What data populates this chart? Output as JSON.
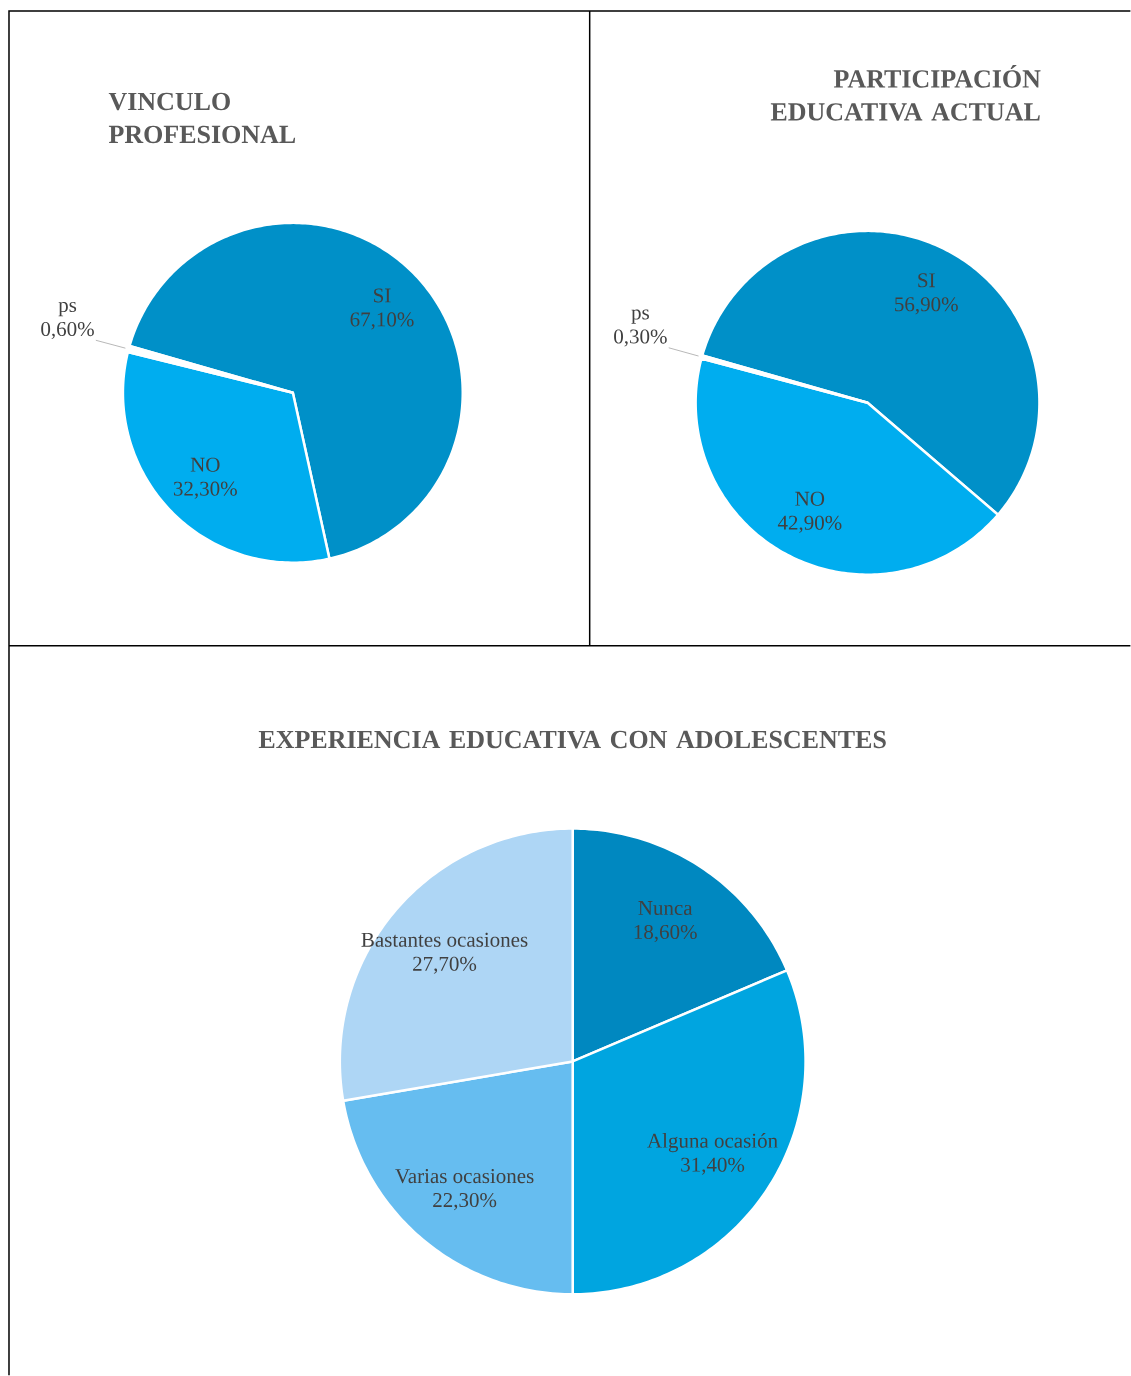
{
  "chart_data": [
    {
      "type": "pie",
      "title": "VINCULO PROFESIONAL",
      "categories": [
        "SI",
        "NO",
        "ps"
      ],
      "values": [
        67.1,
        32.3,
        0.6
      ],
      "value_labels": [
        "67,10%",
        "32,30%",
        "0,60%"
      ],
      "colors": [
        "#0090c8",
        "#00adef",
        "#ffffff"
      ]
    },
    {
      "type": "pie",
      "title": "PARTICIPACIÓN EDUCATIVA ACTUAL",
      "categories": [
        "SI",
        "NO",
        "ps"
      ],
      "values": [
        56.9,
        42.9,
        0.3
      ],
      "value_labels": [
        "56,90%",
        "42,90%",
        "0,30%"
      ],
      "colors": [
        "#0090c8",
        "#00adef",
        "#ffffff"
      ]
    },
    {
      "type": "pie",
      "title": "EXPERIENCIA EDUCATIVA CON ADOLESCENTES",
      "categories": [
        "Nunca",
        "Alguna ocasión",
        "Varias ocasiones",
        "Bastantes ocasiones"
      ],
      "values": [
        18.6,
        31.4,
        22.3,
        27.7
      ],
      "value_labels": [
        "18,60%",
        "31,40%",
        "22,30%",
        "27,70%"
      ],
      "colors": [
        "#0088c0",
        "#00a5e0",
        "#66bdf0",
        "#aed6f5"
      ]
    }
  ]
}
